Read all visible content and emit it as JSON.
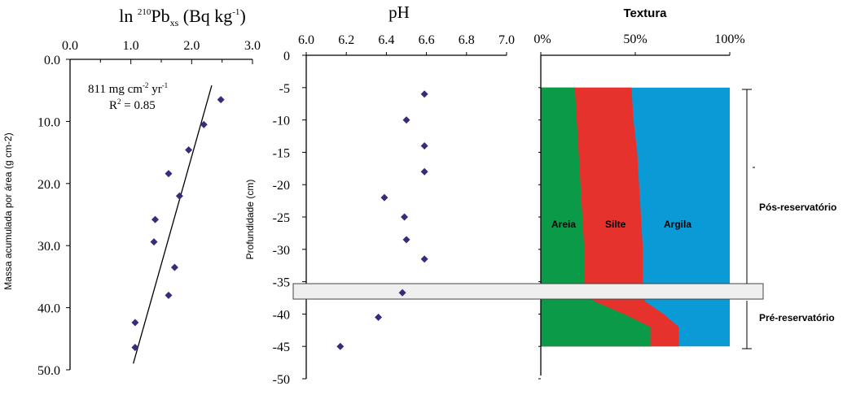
{
  "chart_data": [
    {
      "type": "scatter",
      "title": "ln ²¹⁰Pbxs (Bq kg⁻¹)",
      "title_parts": {
        "pre": "ln ",
        "sup1": "210",
        "main": "Pb",
        "sub": "xs",
        "post1": " (Bq kg",
        "sup2": "-1",
        "post2": ")"
      },
      "ylabel": "Massa acumulada por área (g cm-2)",
      "xlim": [
        0,
        3.0
      ],
      "ylim": [
        0,
        50
      ],
      "x_axis_position": "top",
      "y_inverted": true,
      "xticks": [
        "0.0",
        "1.0",
        "2.0",
        "3.0"
      ],
      "yticks": [
        "0.0",
        "10.0",
        "20.0",
        "30.0",
        "40.0",
        "50.0"
      ],
      "points": [
        {
          "x": 2.48,
          "y": 6.5
        },
        {
          "x": 2.2,
          "y": 10.5
        },
        {
          "x": 1.95,
          "y": 14.6
        },
        {
          "x": 1.62,
          "y": 18.4
        },
        {
          "x": 1.8,
          "y": 22.0
        },
        {
          "x": 1.4,
          "y": 25.8
        },
        {
          "x": 1.38,
          "y": 29.4
        },
        {
          "x": 1.72,
          "y": 33.5
        },
        {
          "x": 1.62,
          "y": 38.0
        },
        {
          "x": 1.07,
          "y": 42.4
        },
        {
          "x": 1.07,
          "y": 46.4
        }
      ],
      "trendline": [
        {
          "x": 2.33,
          "y": 4.2
        },
        {
          "x": 1.04,
          "y": 49.0
        }
      ],
      "annotation": {
        "rate_value": "811 mg cm",
        "rate_sup": "-2",
        "rate_unit": " yr",
        "rate_sup2": "-1",
        "r2_pre": "R",
        "r2_sup": "2",
        "r2_post": " = 0.85"
      },
      "marker_color": "#3b2a7a"
    },
    {
      "type": "scatter",
      "title": "pH",
      "ylabel": "Profundidade (cm)",
      "xlim": [
        6.0,
        7.0
      ],
      "ylim": [
        0,
        -50
      ],
      "x_axis_position": "top",
      "xticks": [
        "6.0",
        "6.2",
        "6.4",
        "6.6",
        "6.8",
        "7.0"
      ],
      "yticks": [
        "0",
        "-5",
        "-10",
        "-15",
        "-20",
        "-25",
        "-30",
        "-35",
        "-40",
        "-45",
        "-50"
      ],
      "points": [
        {
          "x": 6.59,
          "y": -6
        },
        {
          "x": 6.5,
          "y": -10
        },
        {
          "x": 6.59,
          "y": -14
        },
        {
          "x": 6.59,
          "y": -18
        },
        {
          "x": 6.39,
          "y": -22
        },
        {
          "x": 6.49,
          "y": -25
        },
        {
          "x": 6.5,
          "y": -28.5
        },
        {
          "x": 6.59,
          "y": -31.5
        },
        {
          "x": 6.48,
          "y": -36.7
        },
        {
          "x": 6.36,
          "y": -40.5
        },
        {
          "x": 6.17,
          "y": -45
        }
      ],
      "marker_color": "#3b2a7a"
    },
    {
      "type": "area",
      "title": "Textura",
      "xlim": [
        0,
        100
      ],
      "xticks": [
        "0%",
        "50%",
        "100%"
      ],
      "depth_range": [
        -5,
        -45
      ],
      "profile": [
        {
          "depth": -5,
          "areia": 18,
          "silte_cum": 48
        },
        {
          "depth": -10,
          "areia": 19,
          "silte_cum": 49
        },
        {
          "depth": -15,
          "areia": 20,
          "silte_cum": 51
        },
        {
          "depth": -20,
          "areia": 21,
          "silte_cum": 52
        },
        {
          "depth": -25,
          "areia": 22,
          "silte_cum": 53
        },
        {
          "depth": -30,
          "areia": 23,
          "silte_cum": 54
        },
        {
          "depth": -35,
          "areia": 23,
          "silte_cum": 54
        },
        {
          "depth": -38,
          "areia": 28,
          "silte_cum": 55
        },
        {
          "depth": -40,
          "areia": 44,
          "silte_cum": 65
        },
        {
          "depth": -42,
          "areia": 58,
          "silte_cum": 73
        },
        {
          "depth": -45,
          "areia": 58,
          "silte_cum": 73
        }
      ],
      "series": [
        {
          "name": "Areia",
          "color": "#0a9a48"
        },
        {
          "name": "Silte",
          "color": "#e6322c"
        },
        {
          "name": "Argila",
          "color": "#0a9ad6"
        }
      ]
    }
  ],
  "bands": {
    "pos_label": "Pós-reservatório",
    "pre_label": "Pré-reservatório",
    "band_fill": "#efefef"
  }
}
